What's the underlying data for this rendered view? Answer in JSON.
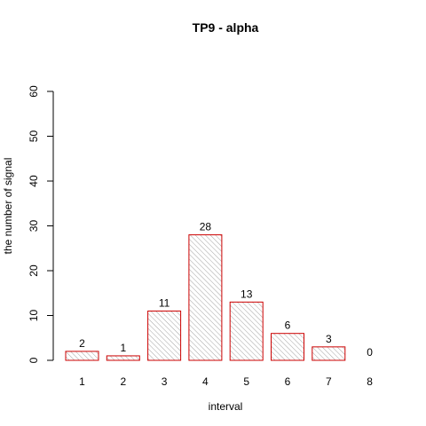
{
  "chart_data": {
    "type": "bar",
    "title": "TP9  -  alpha",
    "xlabel": "interval",
    "ylabel": "the number of signal",
    "categories": [
      "1",
      "2",
      "3",
      "4",
      "5",
      "6",
      "7",
      "8"
    ],
    "values": [
      2,
      1,
      11,
      28,
      13,
      6,
      3,
      0
    ],
    "value_labels": [
      "2",
      "1",
      "11",
      "28",
      "13",
      "6",
      "3",
      "0"
    ],
    "ylim": [
      0,
      60
    ],
    "yticks": [
      0,
      10,
      20,
      30,
      40,
      50,
      60
    ],
    "ytick_labels": [
      "0",
      "10",
      "20",
      "30",
      "40",
      "50",
      "60"
    ],
    "grid": false,
    "legend": "none",
    "bar_border_color": "#cc0000",
    "bar_hatch_color": "#9a9a9a",
    "bar_fill": "hatched"
  }
}
